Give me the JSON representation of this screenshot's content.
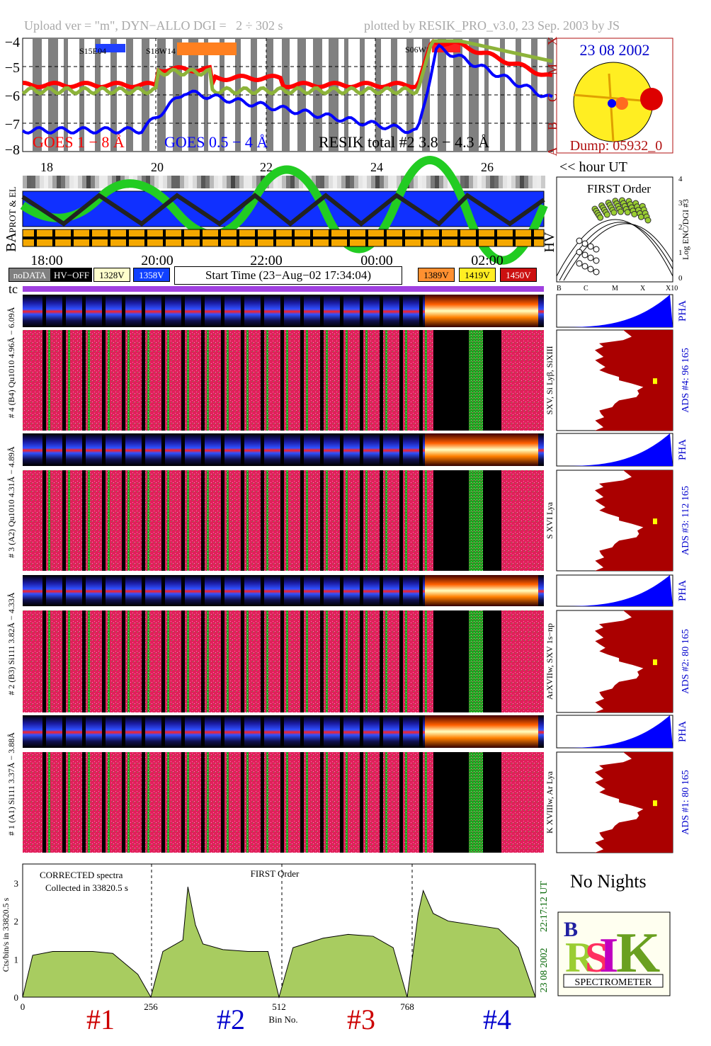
{
  "header": {
    "left": "Upload ver = \"m\", DYN−ALLO DGI =   2 ÷ 302 s",
    "right": "plotted by RESIK_PRO_v3.0, 23 Sep. 2003 by JS"
  },
  "goes": {
    "yticks": [
      "−4",
      "−5",
      "−6",
      "−7",
      "−8"
    ],
    "class_labels": [
      "X",
      "M",
      "C",
      "B",
      "A"
    ],
    "legend_goes1": "GOES 1 − 8 Å",
    "legend_goes2": "GOES 0.5 − 4 Å",
    "legend_resik": "RESIK total #2  3.8 − 4.3 Å",
    "events": [
      "S15E04",
      "S18W14",
      "S06W8"
    ],
    "colors": {
      "goes_long": "#ff0000",
      "goes_short": "#0000ff",
      "resik": "#9acd32"
    }
  },
  "sun": {
    "date": "23 08 2002",
    "dump": "Dump: 05932_0"
  },
  "hour_axis_top": {
    "ticks": [
      "18",
      "20",
      "22",
      "24",
      "26"
    ],
    "label": "<< hour UT"
  },
  "strip_labels": {
    "prot_el": "PROT & EL",
    "ba": "BA",
    "hv": "HV"
  },
  "time_axis": {
    "ticks": [
      "18:00",
      "20:00",
      "22:00",
      "00:00",
      "02:00"
    ]
  },
  "buttons": {
    "nodata": "noDATA",
    "hvoff": "HV−OFF",
    "v1328": "1328V",
    "v1358": "1358V",
    "v1389": "1389V",
    "v1419": "1419V",
    "v1450": "1450V",
    "start_time": "Start Time (23−Aug−02 17:34:04)"
  },
  "tc": "tc",
  "first_order": {
    "title": "FIRST Order",
    "ylabel": "Log ENC/DGI #3",
    "yticks": [
      "4",
      "3",
      "2",
      "1",
      "0"
    ],
    "xticks": [
      "B",
      "C",
      "M",
      "X",
      "X10"
    ]
  },
  "channels": [
    {
      "id": 4,
      "label": "# 4 (B4) Qu1010 4.96Å − 6.09Å",
      "line_label": "SXV, Si Lyβ, SiXIII",
      "ads": "ADS #4:   96 165",
      "pha": "PHA"
    },
    {
      "id": 3,
      "label": "# 3 (A2) Qu1010  4.31Å − 4.89Å",
      "line_label": "S XVI Lya",
      "ads": "ADS #3:   112 165",
      "pha": "PHA"
    },
    {
      "id": 2,
      "label": "# 2 (B3) Si111  3.82Å − 4.33Å",
      "line_label": "ArXVIIw, SXV 1s−np",
      "ads": "ADS #2:   80 165",
      "pha": "PHA"
    },
    {
      "id": 1,
      "label": "# 1 (A1) Si111  3.37Å − 3.88Å",
      "line_label": "K XVIIIw, Ar Lya",
      "ads": "ADS #1:   80 165",
      "pha": "PHA"
    }
  ],
  "spectrum": {
    "title_left": "CORRECTED spectra",
    "subtitle": "Collected in 33820.5 s",
    "title_center": "FIRST Order",
    "ylabel": "Cts/bin/s in 33820.5 s",
    "yticks": [
      "3",
      "2",
      "1",
      "0"
    ],
    "xticks": [
      "0",
      "256",
      "512",
      "768"
    ],
    "xlabel": "Bin No.",
    "time_right": "22:17:12 UT",
    "date_right": "23 08 2002",
    "bins": [
      "#1",
      "#2",
      "#3",
      "#4"
    ]
  },
  "chart_data": {
    "type": "area",
    "title": "",
    "xlabel": "Bin No.",
    "ylabel": "Cts/bin/s in 33820.5 s",
    "xlim": [
      0,
      1024
    ],
    "ylim": [
      0,
      3.5
    ],
    "series": [
      {
        "name": "CORRECTED spectra",
        "x": [
          0,
          20,
          60,
          100,
          140,
          180,
          230,
          256,
          280,
          320,
          330,
          345,
          360,
          400,
          450,
          490,
          512,
          540,
          600,
          650,
          700,
          740,
          768,
          790,
          800,
          820,
          850,
          900,
          950,
          990,
          1024
        ],
        "values": [
          0.0,
          1.1,
          1.2,
          1.2,
          1.2,
          1.15,
          0.6,
          0.0,
          1.2,
          1.5,
          2.9,
          1.9,
          1.4,
          1.25,
          1.2,
          1.2,
          0.0,
          1.3,
          1.55,
          1.65,
          1.6,
          1.3,
          0.0,
          2.2,
          2.8,
          2.2,
          2.0,
          1.9,
          1.8,
          1.3,
          0.0
        ]
      }
    ]
  },
  "logo": {
    "text": "SPECTROMETER"
  }
}
